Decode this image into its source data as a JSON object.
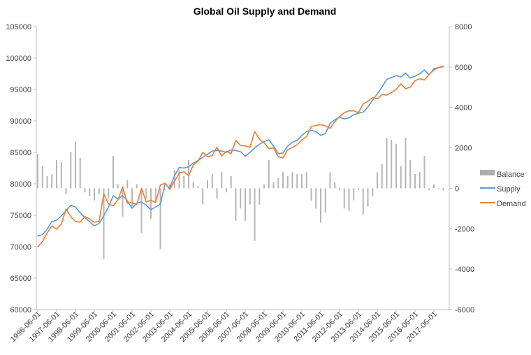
{
  "title": "Global Oil Supply and Demand",
  "chart_data": {
    "type": "combo-bar-line",
    "title": "Global Oil Supply and Demand",
    "grid": false,
    "legend_position": "right",
    "left_axis": {
      "min": 60000,
      "max": 105000,
      "step": 5000,
      "ticks": [
        105000,
        100000,
        95000,
        90000,
        85000,
        80000,
        75000,
        70000,
        65000,
        60000
      ]
    },
    "right_axis": {
      "min": -6000,
      "max": 8000,
      "step": 2000,
      "ticks": [
        8000,
        6000,
        4000,
        2000,
        0,
        -2000,
        -4000,
        -6000
      ]
    },
    "x_tick_labels": [
      "1996-06-01",
      "1997-06-01",
      "1998-06-01",
      "1999-06-01",
      "2000-06-01",
      "2001-06-01",
      "2002-06-01",
      "2003-06-01",
      "2004-06-01",
      "2005-06-01",
      "2006-06-01",
      "2007-06-01",
      "2008-06-01",
      "2009-06-01",
      "2010-06-01",
      "2011-06-01",
      "2012-06-01",
      "2013-06-01",
      "2014-06-01",
      "2015-06-01",
      "2016-06-01",
      "2017-06-01"
    ],
    "dates": [
      "1996-06-01",
      "1996-09-01",
      "1996-12-01",
      "1997-03-01",
      "1997-06-01",
      "1997-09-01",
      "1997-12-01",
      "1998-03-01",
      "1998-06-01",
      "1998-09-01",
      "1998-12-01",
      "1999-03-01",
      "1999-06-01",
      "1999-09-01",
      "1999-12-01",
      "2000-03-01",
      "2000-06-01",
      "2000-09-01",
      "2000-12-01",
      "2001-03-01",
      "2001-06-01",
      "2001-09-01",
      "2001-12-01",
      "2002-03-01",
      "2002-06-01",
      "2002-09-01",
      "2002-12-01",
      "2003-03-01",
      "2003-06-01",
      "2003-09-01",
      "2003-12-01",
      "2004-03-01",
      "2004-06-01",
      "2004-09-01",
      "2004-12-01",
      "2005-03-01",
      "2005-06-01",
      "2005-09-01",
      "2005-12-01",
      "2006-03-01",
      "2006-06-01",
      "2006-09-01",
      "2006-12-01",
      "2007-03-01",
      "2007-06-01",
      "2007-09-01",
      "2007-12-01",
      "2008-03-01",
      "2008-06-01",
      "2008-09-01",
      "2008-12-01",
      "2009-03-01",
      "2009-06-01",
      "2009-09-01",
      "2009-12-01",
      "2010-03-01",
      "2010-06-01",
      "2010-09-01",
      "2010-12-01",
      "2011-03-01",
      "2011-06-01",
      "2011-09-01",
      "2011-12-01",
      "2012-03-01",
      "2012-06-01",
      "2012-09-01",
      "2012-12-01",
      "2013-03-01",
      "2013-06-01",
      "2013-09-01",
      "2013-12-01",
      "2014-03-01",
      "2014-06-01",
      "2014-09-01",
      "2014-12-01",
      "2015-03-01",
      "2015-06-01",
      "2015-09-01",
      "2015-12-01",
      "2016-03-01",
      "2016-06-01",
      "2016-09-01",
      "2016-12-01",
      "2017-03-01",
      "2017-06-01",
      "2017-09-01",
      "2017-12-01"
    ],
    "series": [
      {
        "name": "Balance",
        "type": "bar",
        "axis": "right",
        "color": "#aeaeae",
        "values": [
          1700,
          1100,
          600,
          700,
          1400,
          1300,
          -300,
          1800,
          2300,
          1500,
          -200,
          -400,
          -600,
          -300,
          -3500,
          -500,
          1600,
          200,
          -1400,
          400,
          -900,
          200,
          -2200,
          -500,
          -1500,
          -700,
          -3000,
          -100,
          200,
          900,
          900,
          600,
          1400,
          300,
          100,
          -800,
          400,
          700,
          -500,
          800,
          -200,
          600,
          -1600,
          -1000,
          -1600,
          -800,
          -2600,
          -800,
          200,
          1400,
          300,
          500,
          800,
          600,
          800,
          700,
          700,
          800,
          -600,
          -1000,
          -1700,
          -1200,
          800,
          300,
          -100,
          -1000,
          -1100,
          -600,
          -100,
          -1300,
          -900,
          -400,
          800,
          1200,
          2500,
          2400,
          2200,
          1100,
          2500,
          1400,
          700,
          800,
          1600,
          -100,
          200,
          0,
          -100
        ]
      },
      {
        "name": "Supply",
        "type": "line",
        "axis": "left",
        "color": "#5b9bd5",
        "values": [
          71700,
          71900,
          72800,
          74000,
          74200,
          74900,
          75700,
          76600,
          76300,
          75400,
          74600,
          74000,
          73300,
          73700,
          74900,
          76300,
          78100,
          77600,
          78100,
          77300,
          76100,
          76900,
          77100,
          76600,
          75900,
          76300,
          76800,
          80000,
          79300,
          81300,
          82600,
          82500,
          82700,
          83300,
          83700,
          84200,
          84700,
          85200,
          85300,
          85200,
          85000,
          85400,
          85300,
          85100,
          84400,
          85000,
          85700,
          86300,
          86700,
          87000,
          86000,
          84800,
          84900,
          86000,
          86600,
          86900,
          87700,
          88300,
          88500,
          88300,
          87700,
          88000,
          89600,
          90200,
          90600,
          90300,
          90500,
          91000,
          91200,
          91400,
          92200,
          93300,
          94300,
          95400,
          96600,
          96900,
          97200,
          97000,
          97600,
          96800,
          97100,
          97500,
          98100,
          97300,
          98300,
          98500,
          98600
        ]
      },
      {
        "name": "Demand",
        "type": "line",
        "axis": "left",
        "color": "#ed7d31",
        "values": [
          70000,
          70800,
          72200,
          73300,
          72800,
          73600,
          76000,
          74800,
          74000,
          73900,
          74800,
          74400,
          73900,
          74000,
          78400,
          76800,
          76500,
          77400,
          79500,
          76900,
          77000,
          76700,
          79300,
          77100,
          77400,
          77000,
          79800,
          80100,
          79100,
          80400,
          81700,
          81900,
          81300,
          83000,
          83600,
          85000,
          84300,
          84500,
          85800,
          84400,
          85200,
          84800,
          86900,
          86100,
          86000,
          85800,
          88300,
          87100,
          86500,
          85600,
          85700,
          84300,
          84100,
          85400,
          85800,
          86200,
          87000,
          87500,
          89100,
          89300,
          89400,
          89200,
          88800,
          89900,
          90700,
          91300,
          91600,
          91600,
          91300,
          92700,
          93100,
          93700,
          93500,
          94200,
          94100,
          94500,
          95000,
          95900,
          95100,
          95400,
          96400,
          96700,
          96500,
          97400,
          98100,
          98500,
          98700
        ]
      }
    ]
  }
}
